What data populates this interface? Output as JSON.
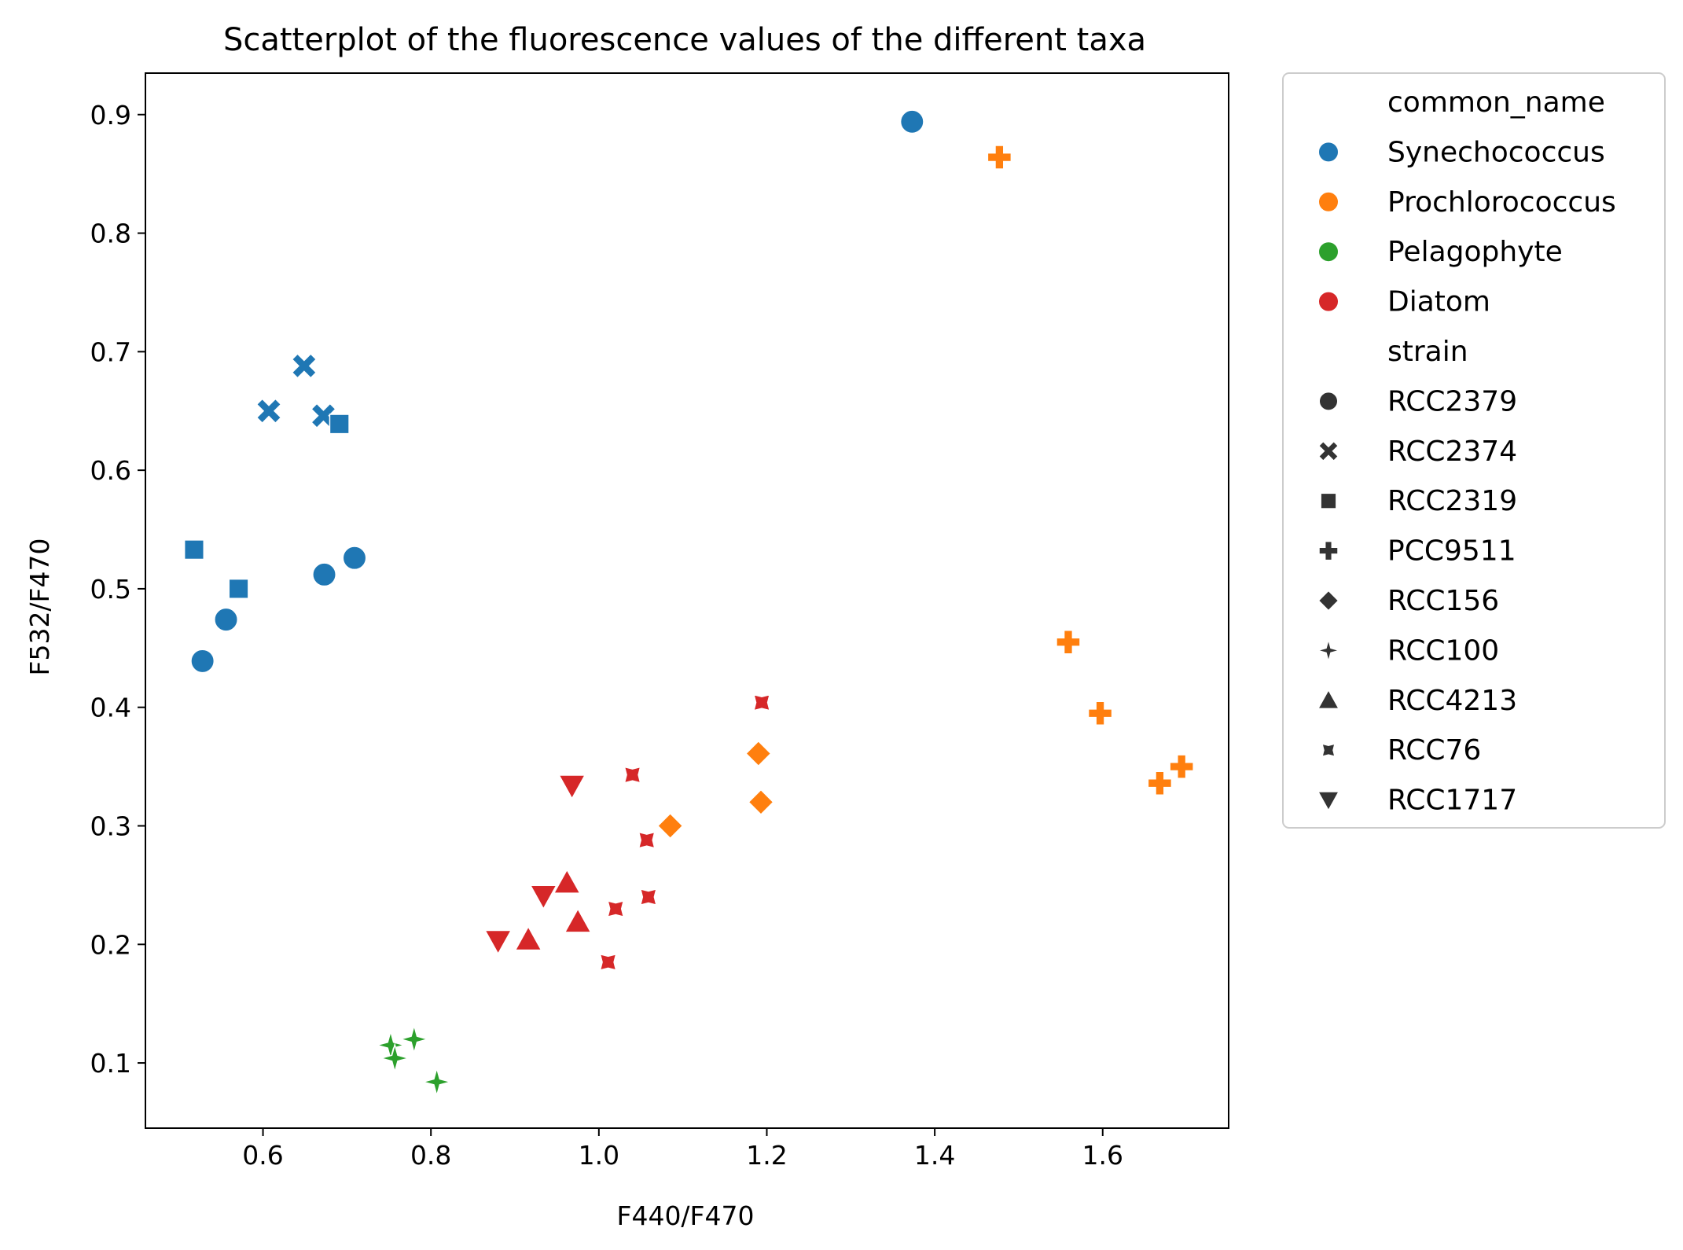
{
  "chart_data": {
    "type": "scatter",
    "title": "Scatterplot of the fluorescence values of the different taxa",
    "xlabel": "F440/F470",
    "ylabel": "F532/F470",
    "xlim": [
      0.46,
      1.75
    ],
    "ylim": [
      0.045,
      0.935
    ],
    "xticks": [
      0.6,
      0.8,
      1.0,
      1.2,
      1.4,
      1.6
    ],
    "yticks": [
      0.1,
      0.2,
      0.3,
      0.4,
      0.5,
      0.6,
      0.7,
      0.8,
      0.9
    ],
    "xtick_labels": [
      "0.6",
      "0.8",
      "1.0",
      "1.2",
      "1.4",
      "1.6"
    ],
    "ytick_labels": [
      "0.1",
      "0.2",
      "0.3",
      "0.4",
      "0.5",
      "0.6",
      "0.7",
      "0.8",
      "0.9"
    ],
    "grid": false,
    "legend_position": "outside-right",
    "legend": {
      "hue_title": "common_name",
      "hue_entries": [
        {
          "label": "Synechococcus",
          "color": "#1f77b4"
        },
        {
          "label": "Prochlorococcus",
          "color": "#ff7f0e"
        },
        {
          "label": "Pelagophyte",
          "color": "#2ca02c"
        },
        {
          "label": "Diatom",
          "color": "#d62728"
        }
      ],
      "style_title": "strain",
      "style_entries": [
        {
          "label": "RCC2379",
          "marker": "circle"
        },
        {
          "label": "RCC2374",
          "marker": "x"
        },
        {
          "label": "RCC2319",
          "marker": "square"
        },
        {
          "label": "PCC9511",
          "marker": "plus"
        },
        {
          "label": "RCC156",
          "marker": "diamond"
        },
        {
          "label": "RCC100",
          "marker": "star4"
        },
        {
          "label": "RCC4213",
          "marker": "triangle-up"
        },
        {
          "label": "RCC76",
          "marker": "star-x"
        },
        {
          "label": "RCC1717",
          "marker": "triangle-down"
        }
      ]
    },
    "series": [
      {
        "hue": "Synechococcus",
        "strain": "RCC2379",
        "color": "#1f77b4",
        "marker": "circle",
        "x": [
          1.373,
          0.528,
          0.556,
          0.673,
          0.709
        ],
        "y": [
          0.894,
          0.439,
          0.474,
          0.512,
          0.526
        ]
      },
      {
        "hue": "Synechococcus",
        "strain": "RCC2374",
        "color": "#1f77b4",
        "marker": "x",
        "x": [
          0.649,
          0.607,
          0.672
        ],
        "y": [
          0.688,
          0.65,
          0.646
        ]
      },
      {
        "hue": "Synechococcus",
        "strain": "RCC2319",
        "color": "#1f77b4",
        "marker": "square",
        "x": [
          0.691,
          0.518,
          0.571
        ],
        "y": [
          0.639,
          0.533,
          0.5
        ]
      },
      {
        "hue": "Prochlorococcus",
        "strain": "PCC9511",
        "color": "#ff7f0e",
        "marker": "plus",
        "x": [
          1.477,
          1.559,
          1.597,
          1.694,
          1.668
        ],
        "y": [
          0.864,
          0.455,
          0.395,
          0.35,
          0.336
        ]
      },
      {
        "hue": "Prochlorococcus",
        "strain": "RCC156",
        "color": "#ff7f0e",
        "marker": "diamond",
        "x": [
          1.19,
          1.193,
          1.085
        ],
        "y": [
          0.361,
          0.32,
          0.3
        ]
      },
      {
        "hue": "Pelagophyte",
        "strain": "RCC100",
        "color": "#2ca02c",
        "marker": "star4",
        "x": [
          0.752,
          0.78,
          0.757,
          0.807
        ],
        "y": [
          0.115,
          0.12,
          0.104,
          0.084
        ]
      },
      {
        "hue": "Diatom",
        "strain": "RCC4213",
        "color": "#d62728",
        "marker": "triangle-up",
        "x": [
          0.962,
          0.975,
          0.916
        ],
        "y": [
          0.252,
          0.219,
          0.204
        ]
      },
      {
        "hue": "Diatom",
        "strain": "RCC76",
        "color": "#d62728",
        "marker": "star-x",
        "x": [
          1.194,
          1.04,
          1.057,
          1.059,
          1.02,
          1.011
        ],
        "y": [
          0.404,
          0.343,
          0.288,
          0.24,
          0.23,
          0.185
        ]
      },
      {
        "hue": "Diatom",
        "strain": "RCC1717",
        "color": "#d62728",
        "marker": "triangle-down",
        "x": [
          0.968,
          0.934,
          0.88
        ],
        "y": [
          0.334,
          0.241,
          0.203
        ]
      }
    ]
  }
}
